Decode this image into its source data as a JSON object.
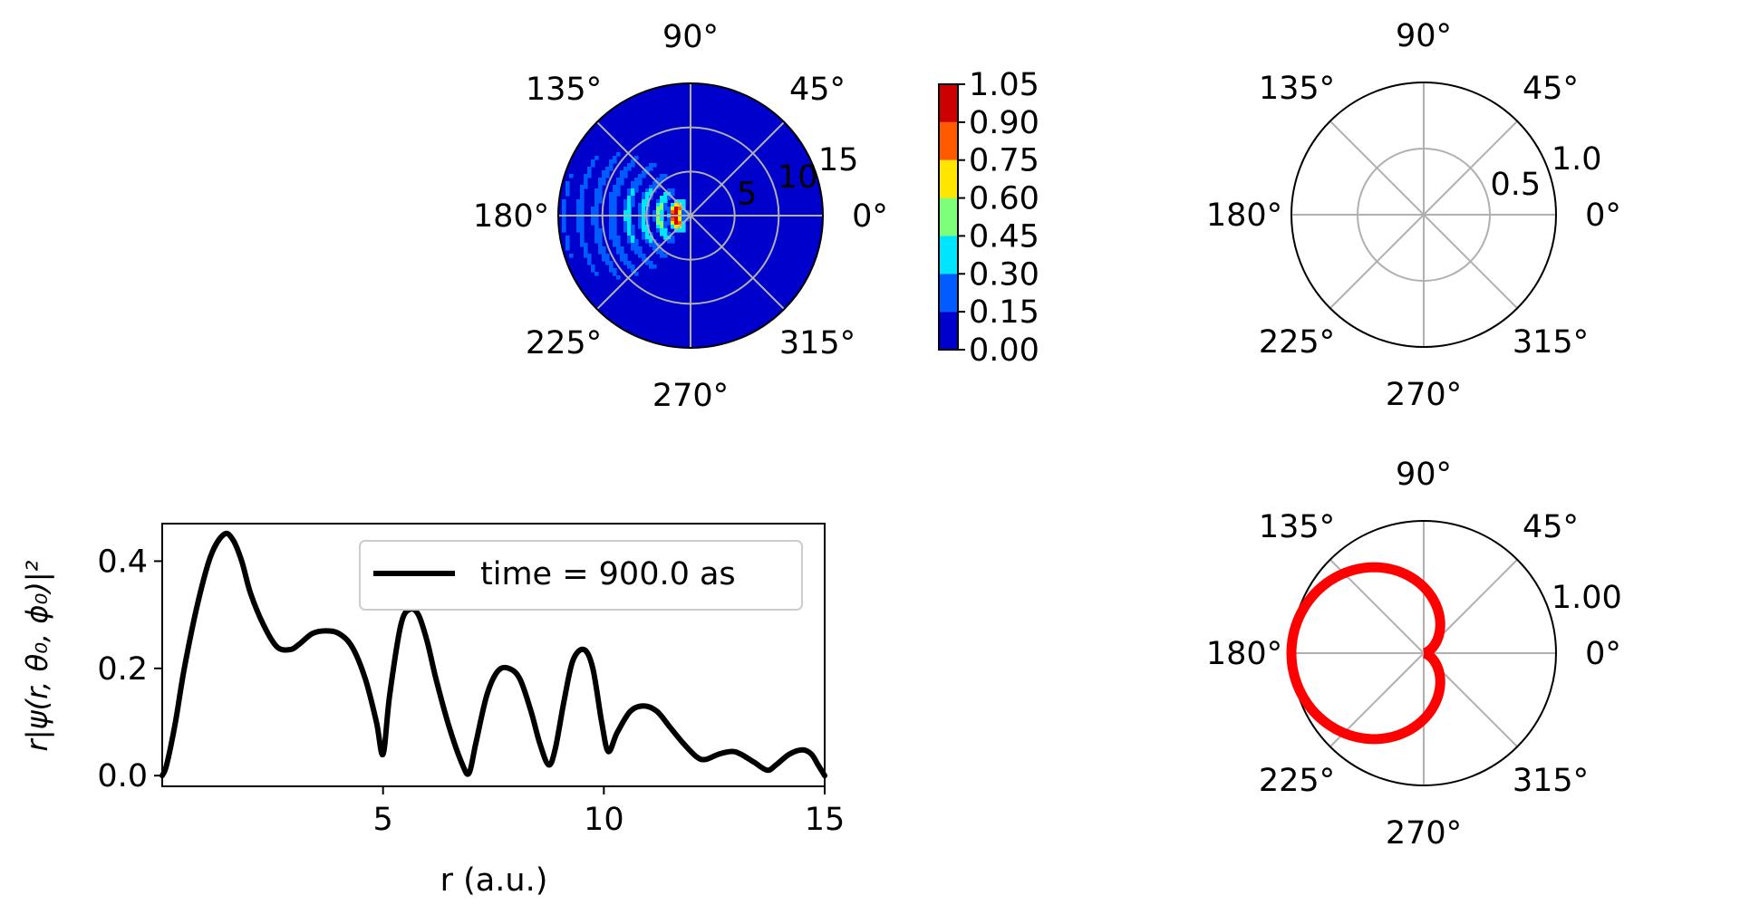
{
  "chart_data": [
    {
      "id": "polar_density",
      "type": "heatmap",
      "projection": "polar",
      "angle_ticks": [
        "0°",
        "45°",
        "90°",
        "135°",
        "180°",
        "225°",
        "270°",
        "315°"
      ],
      "radial_ticks": [
        "5",
        "10",
        "15"
      ],
      "radial_tick_values": [
        5,
        10,
        15
      ],
      "rmax": 15,
      "grid": true,
      "colormap": "jet",
      "levels": [
        0.0,
        0.15,
        0.3,
        0.45,
        0.6,
        0.75,
        0.9,
        1.05
      ],
      "level_colors": [
        "#0000cc",
        "#005cff",
        "#00e5ff",
        "#7dff7a",
        "#ffe600",
        "#ff5a00",
        "#cc0000"
      ],
      "colorbar_ticks": [
        "0.00",
        "0.15",
        "0.30",
        "0.45",
        "0.60",
        "0.75",
        "0.90",
        "1.05"
      ],
      "background_color": "#0000cc"
    },
    {
      "id": "polar_empty",
      "type": "line",
      "projection": "polar",
      "angle_ticks": [
        "0°",
        "45°",
        "90°",
        "135°",
        "180°",
        "225°",
        "270°",
        "315°"
      ],
      "radial_ticks": [
        "0.5",
        "1.0"
      ],
      "radial_tick_values": [
        0.5,
        1.0
      ],
      "rmax": 1.0,
      "grid": true,
      "series": []
    },
    {
      "id": "radial_profile",
      "type": "line",
      "xlabel": "r (a.u.)",
      "ylabel": "r|ψ(r, θ₀, ϕ₀)|²",
      "xlim": [
        0,
        15
      ],
      "ylim": [
        -0.02,
        0.47
      ],
      "xticks": [
        "5",
        "10",
        "15"
      ],
      "xtick_values": [
        5,
        10,
        15
      ],
      "yticks": [
        "0.0",
        "0.2",
        "0.4"
      ],
      "ytick_values": [
        0.0,
        0.2,
        0.4
      ],
      "legend": [
        "time = 900.0 as"
      ],
      "legend_position": "upper-right",
      "grid": false,
      "series": [
        {
          "name": "time = 900.0 as",
          "color": "#000000",
          "x": [
            0.0,
            0.1,
            0.3,
            0.5,
            0.8,
            1.1,
            1.4,
            1.6,
            1.8,
            2.0,
            2.3,
            2.6,
            2.9,
            3.1,
            3.4,
            3.7,
            4.0,
            4.3,
            4.6,
            4.85,
            5.0,
            5.15,
            5.4,
            5.6,
            5.8,
            6.0,
            6.2,
            6.5,
            6.8,
            6.95,
            7.1,
            7.35,
            7.6,
            7.85,
            8.1,
            8.35,
            8.55,
            8.75,
            8.9,
            9.1,
            9.3,
            9.55,
            9.75,
            9.95,
            10.1,
            10.3,
            10.6,
            10.9,
            11.2,
            11.5,
            11.8,
            12.1,
            12.3,
            12.6,
            12.9,
            13.1,
            13.4,
            13.7,
            13.9,
            14.2,
            14.5,
            14.7,
            14.85,
            15.0
          ],
          "y": [
            0.0,
            0.02,
            0.1,
            0.2,
            0.32,
            0.41,
            0.45,
            0.44,
            0.4,
            0.34,
            0.28,
            0.24,
            0.235,
            0.245,
            0.265,
            0.27,
            0.265,
            0.24,
            0.18,
            0.1,
            0.04,
            0.15,
            0.28,
            0.31,
            0.3,
            0.25,
            0.18,
            0.09,
            0.02,
            0.005,
            0.06,
            0.15,
            0.195,
            0.2,
            0.18,
            0.12,
            0.06,
            0.02,
            0.05,
            0.14,
            0.215,
            0.235,
            0.2,
            0.1,
            0.045,
            0.08,
            0.12,
            0.13,
            0.12,
            0.09,
            0.06,
            0.035,
            0.03,
            0.04,
            0.045,
            0.04,
            0.025,
            0.01,
            0.02,
            0.04,
            0.048,
            0.04,
            0.02,
            0.0
          ]
        }
      ]
    },
    {
      "id": "polar_angular",
      "type": "line",
      "projection": "polar",
      "angle_ticks": [
        "0°",
        "45°",
        "90°",
        "135°",
        "180°",
        "225°",
        "270°",
        "315°"
      ],
      "radial_ticks": [
        "1.00"
      ],
      "radial_tick_values": [
        1.0
      ],
      "rmax": 1.0,
      "grid": true,
      "series": [
        {
          "color": "#ff0000",
          "formula": "r(phi) = (1 - cos(phi)) / 2",
          "points": 180
        }
      ]
    }
  ]
}
